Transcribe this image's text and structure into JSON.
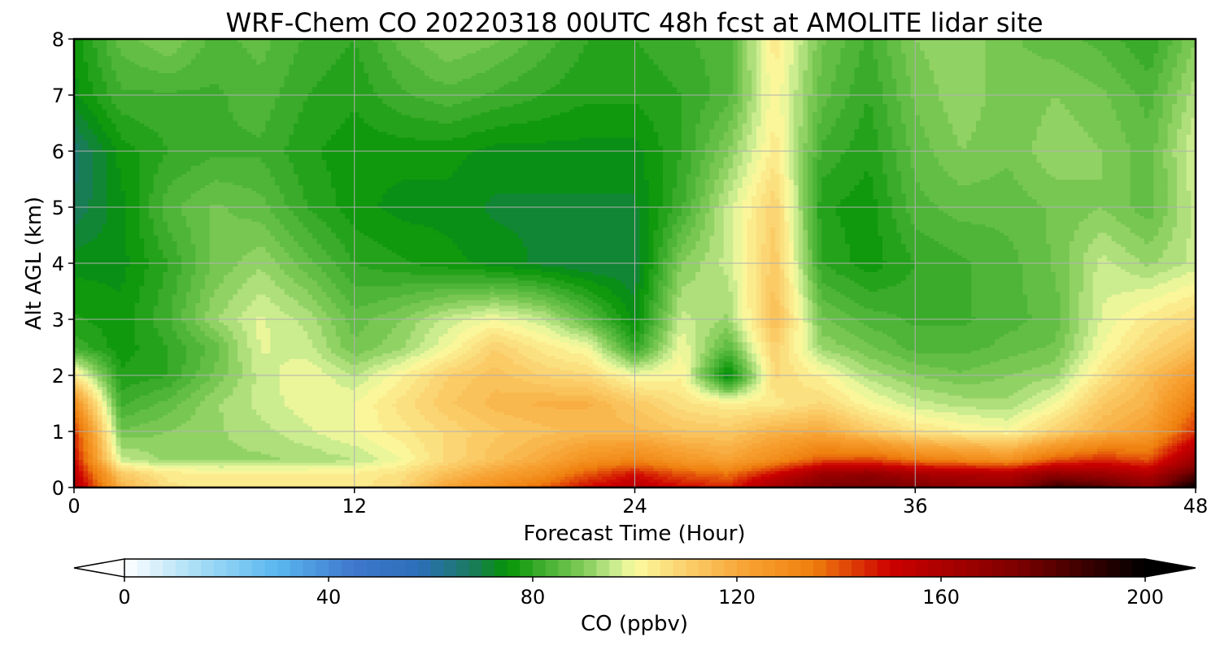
{
  "chart_data": {
    "type": "heatmap",
    "title": "WRF-Chem CO  20220318 00UTC 48h fcst at AMOLITE lidar site",
    "xlabel": "Forecast Time (Hour)",
    "ylabel": "Alt AGL (km)",
    "xlim": [
      0,
      48
    ],
    "ylim": [
      0,
      8
    ],
    "x_ticks": [
      "0",
      "12",
      "24",
      "36",
      "48"
    ],
    "y_ticks": [
      "0",
      "1",
      "2",
      "3",
      "4",
      "5",
      "6",
      "7",
      "8"
    ],
    "grid": true,
    "x_hours": [
      0,
      2,
      4,
      6,
      8,
      10,
      12,
      14,
      16,
      18,
      20,
      22,
      24,
      26,
      28,
      30,
      32,
      34,
      36,
      38,
      40,
      42,
      44,
      46,
      48
    ],
    "y_km": [
      0,
      0.25,
      0.5,
      1,
      1.5,
      2,
      2.5,
      3,
      4,
      5,
      6,
      7,
      8
    ],
    "co_ppbv": [
      [
        160,
        118,
        106,
        104,
        104,
        104,
        104,
        108,
        122,
        130,
        138,
        150,
        156,
        150,
        146,
        165,
        175,
        178,
        175,
        170,
        168,
        190,
        185,
        172,
        200
      ],
      [
        155,
        112,
        104,
        103,
        103,
        103,
        103,
        106,
        115,
        122,
        128,
        140,
        148,
        140,
        136,
        150,
        165,
        168,
        162,
        160,
        158,
        168,
        165,
        158,
        182
      ],
      [
        150,
        96,
        92,
        92,
        92,
        93,
        95,
        100,
        108,
        114,
        120,
        128,
        132,
        126,
        122,
        130,
        140,
        142,
        135,
        132,
        128,
        140,
        145,
        140,
        165
      ],
      [
        145,
        88,
        90,
        92,
        94,
        97,
        100,
        104,
        108,
        112,
        114,
        116,
        116,
        113,
        112,
        118,
        120,
        112,
        106,
        103,
        101,
        110,
        118,
        124,
        145
      ],
      [
        130,
        82,
        86,
        92,
        96,
        99,
        100,
        106,
        112,
        116,
        118,
        118,
        112,
        106,
        103,
        104,
        108,
        101,
        96,
        94,
        93,
        100,
        112,
        118,
        135
      ],
      [
        105,
        78,
        80,
        88,
        96,
        100,
        95,
        102,
        110,
        114,
        110,
        108,
        100,
        102,
        72,
        108,
        102,
        94,
        90,
        88,
        90,
        92,
        105,
        115,
        125
      ],
      [
        82,
        76,
        80,
        86,
        98,
        96,
        88,
        92,
        100,
        110,
        104,
        100,
        80,
        100,
        85,
        110,
        92,
        88,
        84,
        84,
        86,
        88,
        100,
        108,
        115
      ],
      [
        78,
        76,
        82,
        92,
        98,
        94,
        86,
        90,
        96,
        100,
        96,
        86,
        74,
        96,
        92,
        115,
        88,
        84,
        82,
        82,
        84,
        86,
        98,
        104,
        108
      ],
      [
        74,
        74,
        80,
        88,
        92,
        86,
        80,
        78,
        76,
        74,
        72,
        70,
        70,
        90,
        96,
        112,
        80,
        76,
        80,
        82,
        84,
        88,
        96,
        92,
        96
      ],
      [
        68,
        74,
        84,
        88,
        86,
        80,
        76,
        74,
        74,
        72,
        72,
        72,
        72,
        82,
        96,
        110,
        78,
        76,
        84,
        86,
        86,
        88,
        90,
        86,
        96
      ],
      [
        66,
        76,
        80,
        82,
        82,
        78,
        76,
        76,
        76,
        74,
        74,
        74,
        74,
        80,
        90,
        104,
        82,
        78,
        86,
        90,
        88,
        92,
        90,
        86,
        98
      ],
      [
        74,
        82,
        82,
        82,
        84,
        80,
        78,
        82,
        84,
        82,
        80,
        78,
        78,
        80,
        84,
        102,
        86,
        80,
        88,
        92,
        88,
        90,
        88,
        84,
        94
      ],
      [
        76,
        86,
        90,
        84,
        86,
        82,
        80,
        86,
        90,
        88,
        84,
        80,
        80,
        82,
        84,
        104,
        88,
        82,
        90,
        92,
        88,
        86,
        84,
        80,
        90
      ]
    ],
    "colorbar": {
      "label": "CO  (ppbv)",
      "range": [
        0,
        200
      ],
      "ticks": [
        "0",
        "40",
        "80",
        "120",
        "160",
        "200"
      ],
      "extend": "both",
      "color_stops": [
        [
          0,
          "#ffffff"
        ],
        [
          15,
          "#a3dcf5"
        ],
        [
          30,
          "#5ab7ef"
        ],
        [
          45,
          "#3f77cc"
        ],
        [
          58,
          "#2b6fb8"
        ],
        [
          68,
          "#1a7a5e"
        ],
        [
          75,
          "#069406"
        ],
        [
          82,
          "#40ae2e"
        ],
        [
          90,
          "#82cc5a"
        ],
        [
          96,
          "#c8eb8e"
        ],
        [
          100,
          "#fbfba0"
        ],
        [
          110,
          "#fbd06c"
        ],
        [
          122,
          "#f7a232"
        ],
        [
          135,
          "#ef7f0e"
        ],
        [
          150,
          "#cd0000"
        ],
        [
          175,
          "#7d0000"
        ],
        [
          200,
          "#000000"
        ]
      ]
    }
  }
}
